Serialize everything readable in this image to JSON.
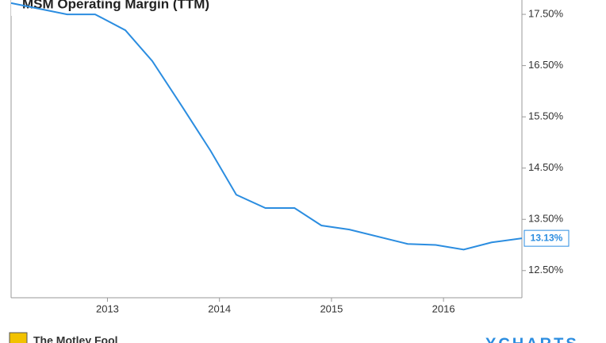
{
  "chart_data": {
    "type": "line",
    "title": "MSM Operating Margin (TTM)",
    "x": [
      2012.14,
      2012.64,
      2012.89,
      2013.16,
      2013.4,
      2013.67,
      2013.92,
      2014.15,
      2014.41,
      2014.67,
      2014.91,
      2015.16,
      2015.68,
      2015.93,
      2016.18,
      2016.43,
      2016.7
    ],
    "values": [
      17.72,
      17.5,
      17.5,
      17.19,
      16.59,
      15.69,
      14.84,
      13.98,
      13.72,
      13.72,
      13.38,
      13.3,
      13.02,
      13.0,
      12.91,
      13.05,
      13.13
    ],
    "value_labels": [
      null,
      null,
      null,
      null,
      null,
      null,
      null,
      null,
      null,
      null,
      null,
      null,
      null,
      null,
      null,
      null,
      "13.13%"
    ],
    "color": "#2b8de0",
    "xlim": [
      2012.14,
      2016.7
    ],
    "xticks": [
      2013,
      2014,
      2015,
      2016
    ],
    "ylim": [
      11.97,
      17.78
    ],
    "yticks": [
      {
        "value": 12.5,
        "label": "12.50%"
      },
      {
        "value": 13.5,
        "label": "13.50%"
      },
      {
        "value": 14.5,
        "label": "14.50%"
      },
      {
        "value": 15.5,
        "label": "15.50%"
      },
      {
        "value": 16.5,
        "label": "16.50%"
      },
      {
        "value": 17.5,
        "label": "17.50%"
      }
    ],
    "grid": false,
    "footer_left": "The Motley Fool",
    "footer_right": "YCHARTS"
  }
}
